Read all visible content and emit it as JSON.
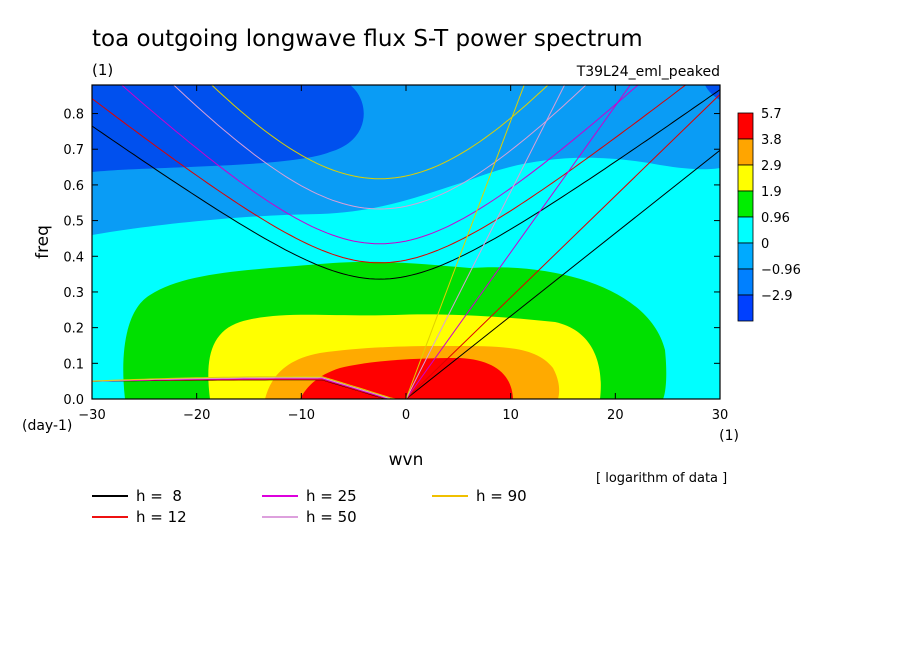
{
  "chart_data": {
    "type": "heatmap",
    "title": "toa outgoing longwave flux S-T power spectrum",
    "title_units": "(1)",
    "experiment": "T39L24_eml_peaked",
    "xlabel": "wvn",
    "xlabel_units": "(1)",
    "ylabel": "freq",
    "ylabel_units": "(day-1)",
    "xlim": [
      -30,
      30
    ],
    "ylim": [
      0.0,
      0.88
    ],
    "xticks": [
      "-30",
      "-20",
      "-10",
      "0",
      "10",
      "20",
      "30"
    ],
    "yticks": [
      "0.0",
      "0.1",
      "0.2",
      "0.3",
      "0.4",
      "0.5",
      "0.6",
      "0.7",
      "0.8"
    ],
    "note": "[ logarithm of data ]",
    "colorbar": {
      "levels": [
        "5.7",
        "3.8",
        "2.9",
        "1.9",
        "0.96",
        "0",
        "-0.96",
        "-2.9"
      ],
      "colors": [
        "#ff0000",
        "#ffa500",
        "#ffff00",
        "#00ee00",
        "#00ffff",
        "#00aaff",
        "#0080ff",
        "#0040ff"
      ]
    },
    "fill_colors": {
      "band1": "#0050ee",
      "band2": "#0a9cf5",
      "band3": "#00ffff",
      "band4": "#00e000",
      "band5": "#ffff00",
      "band6": "#ffaa00",
      "band7": "#ff0000"
    },
    "dispersion_curves": {
      "equivalent_depths_m": [
        8,
        12,
        25,
        50,
        90
      ],
      "colors": {
        "8": "#000000",
        "12": "#dd0000",
        "25": "#cc00cc",
        "50": "#d8a0d8",
        "90": "#e0d000"
      }
    },
    "legend": [
      {
        "label": "h =  8",
        "color": "#000000"
      },
      {
        "label": "h = 12",
        "color": "#ee1111"
      },
      {
        "label": "h = 25",
        "color": "#dd00dd"
      },
      {
        "label": "h = 50",
        "color": "#dda0dd"
      },
      {
        "label": "h = 90",
        "color": "#f0c000"
      }
    ]
  }
}
